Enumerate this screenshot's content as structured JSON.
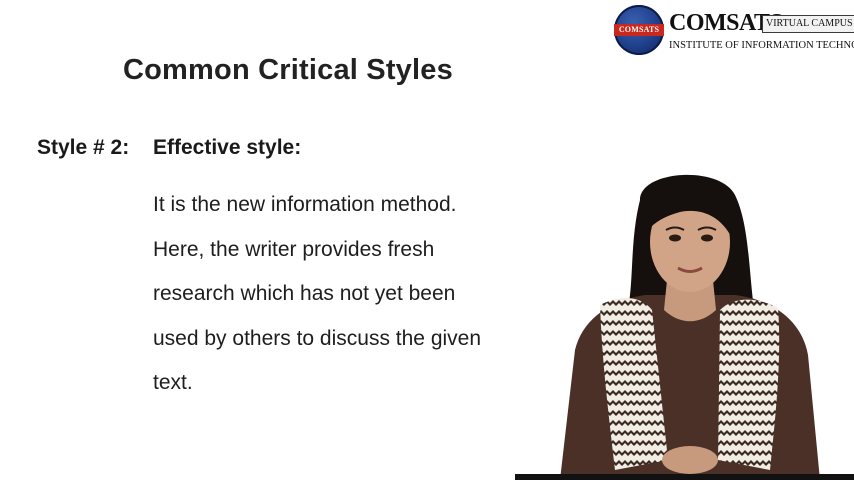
{
  "logo": {
    "seal_text": "COMSATS",
    "name": "COMSATS",
    "tag": "VIRTUAL CAMPUS",
    "subtitle": "INSTITUTE OF INFORMATION TECHNOLOGY"
  },
  "slide": {
    "title": "Common Critical Styles",
    "style_label": "Style # 2:",
    "style_name": "Effective style:",
    "lines": [
      "It is the new information method.",
      "Here, the writer provides fresh",
      "research which has not yet been",
      "used by others to discuss the given",
      "text."
    ]
  },
  "colors": {
    "logo_seal": "#1f3f8a",
    "logo_band": "#c8281e",
    "sweater": "#4a3026",
    "hair": "#15100d"
  },
  "icons": [
    "comsats-logo-icon",
    "presenter-image"
  ]
}
